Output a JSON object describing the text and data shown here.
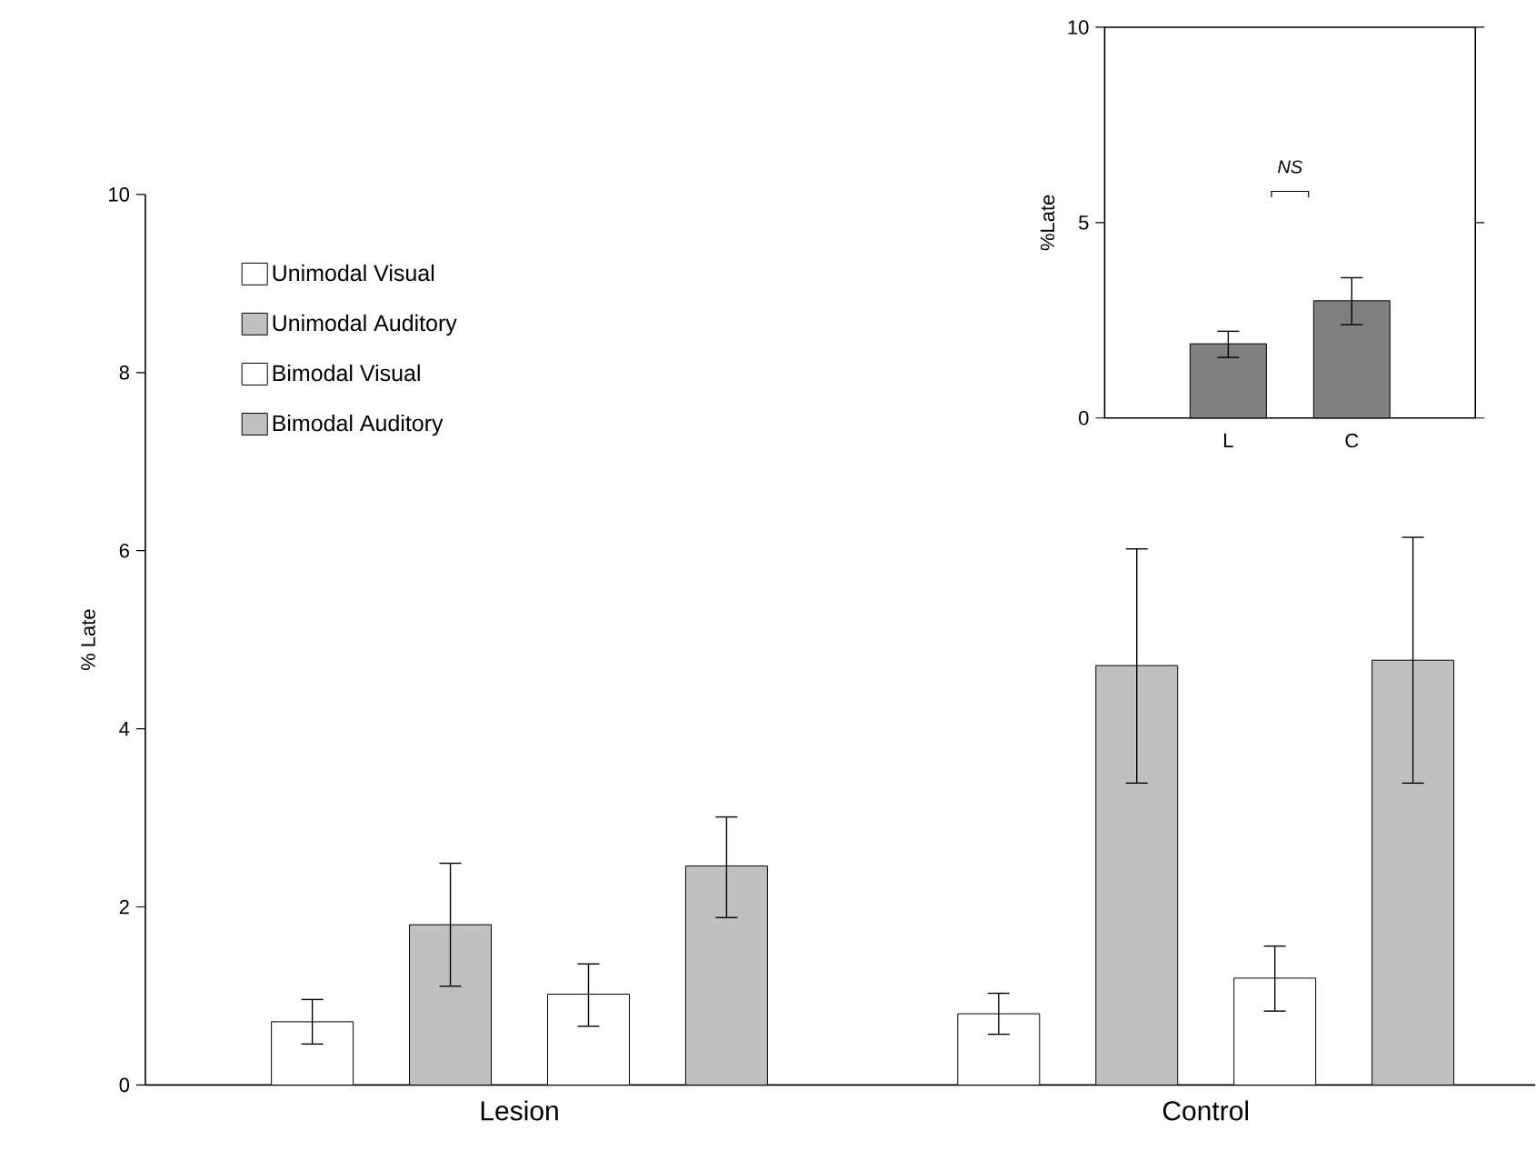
{
  "chart_data": [
    {
      "type": "bar",
      "ylabel": "% Late",
      "categories": [
        "Lesion",
        "Control"
      ],
      "series": [
        {
          "name": "Unimodal Visual",
          "color": "#ffffff",
          "values": [
            0.71,
            0.8
          ],
          "errors": [
            [
              0.46,
              0.96
            ],
            [
              0.57,
              1.03
            ]
          ]
        },
        {
          "name": "Unimodal Auditory",
          "color": "#c0c0c0",
          "values": [
            1.8,
            4.71
          ],
          "errors": [
            [
              1.11,
              2.49
            ],
            [
              3.39,
              6.02
            ]
          ]
        },
        {
          "name": "Bimodal Visual",
          "color": "#ffffff",
          "values": [
            1.02,
            1.2
          ],
          "errors": [
            [
              0.66,
              1.36
            ],
            [
              0.83,
              1.56
            ]
          ]
        },
        {
          "name": "Bimodal Auditory",
          "color": "#c0c0c0",
          "values": [
            2.46,
            4.77
          ],
          "errors": [
            [
              1.88,
              3.01
            ],
            [
              3.39,
              6.15
            ]
          ]
        }
      ],
      "ylim": [
        0,
        10
      ],
      "yticks": [
        0,
        2,
        4,
        6,
        8,
        10
      ],
      "legend": "top left"
    },
    {
      "type": "bar",
      "ylabel": "%Late",
      "categories": [
        "L",
        "C"
      ],
      "values": [
        1.9,
        3.0
      ],
      "color": "#808080",
      "errors": [
        [
          1.55,
          2.22
        ],
        [
          2.39,
          3.59
        ]
      ],
      "ylim": [
        0,
        10
      ],
      "yticks": [
        0,
        5,
        10
      ],
      "annotations": [
        "NS"
      ]
    }
  ]
}
